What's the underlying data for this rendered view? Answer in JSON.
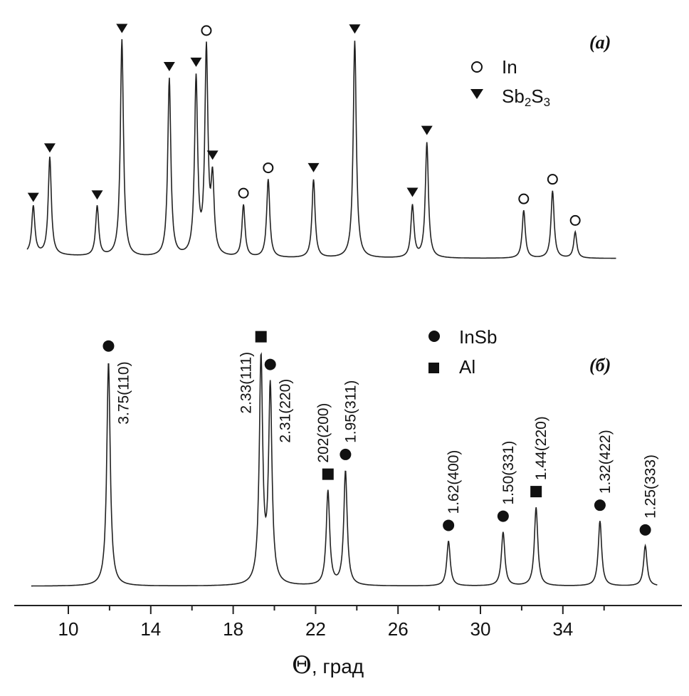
{
  "chart_data": [
    {
      "panel": "(a)",
      "type": "line",
      "legend": [
        {
          "marker": "circle-open",
          "label": "In"
        },
        {
          "marker": "triangle-down",
          "label": "Sb2S3",
          "label_base": "Sb",
          "sub1": "2",
          "mid": "S",
          "sub2": "3"
        }
      ],
      "legend_position": "top-right",
      "peaks": [
        {
          "x": 8.3,
          "h": 0.22,
          "marker": "triangle-down"
        },
        {
          "x": 9.1,
          "h": 0.45,
          "marker": "triangle-down"
        },
        {
          "x": 11.4,
          "h": 0.23,
          "marker": "triangle-down"
        },
        {
          "x": 12.6,
          "h": 1.0,
          "marker": "triangle-down"
        },
        {
          "x": 14.9,
          "h": 0.82,
          "marker": "triangle-down"
        },
        {
          "x": 16.2,
          "h": 0.81,
          "marker": "triangle-down"
        },
        {
          "x": 16.7,
          "h": 0.94,
          "marker": "circle-open"
        },
        {
          "x": 17.0,
          "h": 0.33,
          "marker": "triangle-down"
        },
        {
          "x": 18.5,
          "h": 0.24,
          "marker": "circle-open"
        },
        {
          "x": 19.7,
          "h": 0.36,
          "marker": "circle-open"
        },
        {
          "x": 21.9,
          "h": 0.36,
          "marker": "triangle-down"
        },
        {
          "x": 23.9,
          "h": 1.0,
          "marker": "triangle-down"
        },
        {
          "x": 26.7,
          "h": 0.24,
          "marker": "triangle-down"
        },
        {
          "x": 27.4,
          "h": 0.53,
          "marker": "triangle-down"
        },
        {
          "x": 32.1,
          "h": 0.22,
          "marker": "circle-open"
        },
        {
          "x": 33.5,
          "h": 0.31,
          "marker": "circle-open"
        },
        {
          "x": 34.6,
          "h": 0.12,
          "marker": "circle-open"
        }
      ]
    },
    {
      "panel": "(б)",
      "type": "line",
      "legend": [
        {
          "marker": "circle-filled",
          "label": "InSb"
        },
        {
          "marker": "square-filled",
          "label": "Al"
        }
      ],
      "legend_position": "top-right",
      "peaks": [
        {
          "x": 11.95,
          "h": 1.0,
          "marker": "circle-filled",
          "label": "3.75(110)"
        },
        {
          "x": 19.35,
          "h": 1.0,
          "marker": "square-filled",
          "label": "2.33(111)"
        },
        {
          "x": 19.8,
          "h": 0.87,
          "marker": "circle-filled",
          "label": "2.31(220)"
        },
        {
          "x": 22.6,
          "h": 0.42,
          "marker": "square-filled",
          "label": "202(200)"
        },
        {
          "x": 23.45,
          "h": 0.51,
          "marker": "circle-filled",
          "label": "1.95(311)"
        },
        {
          "x": 28.45,
          "h": 0.2,
          "marker": "circle-filled",
          "label": "1.62(400)"
        },
        {
          "x": 31.1,
          "h": 0.24,
          "marker": "circle-filled",
          "label": "1.50(331)"
        },
        {
          "x": 32.7,
          "h": 0.35,
          "marker": "square-filled",
          "label": "1.44(220)"
        },
        {
          "x": 35.8,
          "h": 0.29,
          "marker": "circle-filled",
          "label": "1.32(422)"
        },
        {
          "x": 38.0,
          "h": 0.18,
          "marker": "circle-filled",
          "label": "1.25(333)"
        }
      ]
    }
  ],
  "x_axis": {
    "label_symbol": "Θ",
    "label_text": ", град",
    "ticks": [
      10,
      14,
      18,
      22,
      26,
      30,
      34
    ],
    "minor_ticks": [
      12,
      16,
      20,
      24,
      28,
      32,
      36
    ],
    "range": [
      7.7,
      39.0
    ]
  },
  "colors": {
    "line": "#222222",
    "marker": "#111111"
  }
}
